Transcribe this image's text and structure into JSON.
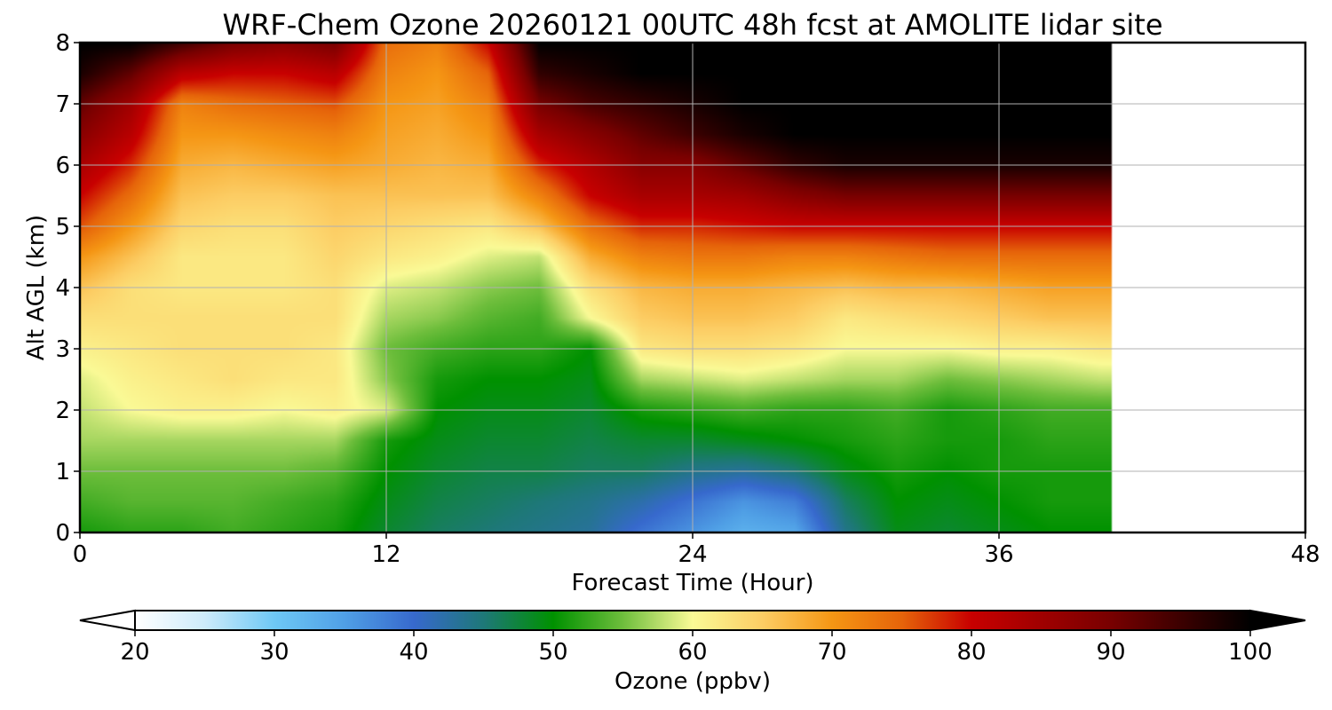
{
  "chart_data": {
    "type": "heatmap",
    "title": "WRF-Chem Ozone  20260121 00UTC 48h fcst at AMOLITE lidar site",
    "xlabel": "Forecast Time (Hour)",
    "ylabel": "Alt AGL (km)",
    "xlim": [
      0,
      48
    ],
    "ylim": [
      0,
      8
    ],
    "x_ticks": [
      "0",
      "12",
      "24",
      "36",
      "48"
    ],
    "y_ticks": [
      "0",
      "1",
      "2",
      "3",
      "4",
      "5",
      "6",
      "7",
      "8"
    ],
    "grid": true,
    "data_end_hour": 40.4,
    "colorbar": {
      "label": "Ozone  (ppbv)",
      "range": [
        20,
        100
      ],
      "ticks": [
        "20",
        "30",
        "40",
        "50",
        "60",
        "70",
        "80",
        "90",
        "100"
      ],
      "extend": "both",
      "orientation": "horizontal"
    },
    "hours": [
      0,
      2,
      4,
      6,
      8,
      10,
      12,
      14,
      16,
      18,
      20,
      22,
      24,
      26,
      28,
      30,
      32,
      34,
      36,
      38,
      40
    ],
    "altitudes_km": [
      0,
      0.5,
      1,
      1.5,
      2,
      2.5,
      3,
      3.5,
      4,
      4.5,
      5,
      5.5,
      6,
      6.5,
      7,
      7.5,
      8
    ],
    "ozone_ppbv": [
      [
        51,
        52,
        52,
        53,
        52,
        51,
        48,
        46,
        45,
        44,
        43,
        39,
        36,
        33,
        34,
        44,
        49,
        48,
        49,
        50,
        50
      ],
      [
        53,
        54,
        54,
        54,
        53,
        52,
        49,
        47,
        46,
        45,
        44,
        42,
        39,
        36,
        38,
        46,
        50,
        49,
        50,
        51,
        51
      ],
      [
        55,
        55,
        55,
        55,
        55,
        54,
        50,
        48,
        47,
        47,
        46,
        46,
        44,
        43,
        45,
        49,
        51,
        50,
        51,
        51,
        51
      ],
      [
        57,
        57,
        57,
        57,
        57,
        57,
        51,
        49,
        48,
        48,
        47,
        48,
        48,
        49,
        50,
        51,
        52,
        51,
        51,
        52,
        52
      ],
      [
        58,
        60,
        61,
        61,
        60,
        61,
        59,
        50,
        49,
        49,
        48,
        51,
        52,
        53,
        52,
        52,
        53,
        51,
        52,
        53,
        53
      ],
      [
        59,
        61,
        62,
        63,
        62,
        62,
        56,
        51,
        50,
        50,
        49,
        57,
        58,
        59,
        58,
        57,
        57,
        55,
        56,
        57,
        58
      ],
      [
        61,
        62,
        63,
        63,
        63,
        62,
        55,
        53,
        52,
        52,
        50,
        62,
        63,
        63,
        62,
        60,
        60,
        60,
        61,
        61,
        62
      ],
      [
        63,
        63,
        63,
        63,
        63,
        63,
        57,
        56,
        54,
        53,
        60,
        65,
        66,
        66,
        65,
        62,
        63,
        64,
        65,
        66,
        66
      ],
      [
        66,
        63,
        62,
        62,
        62,
        63,
        59,
        58,
        56,
        55,
        63,
        67,
        68,
        68,
        67,
        66,
        67,
        67,
        68,
        69,
        69
      ],
      [
        70,
        66,
        62,
        62,
        62,
        64,
        62,
        61,
        59,
        58,
        68,
        72,
        73,
        73,
        72,
        72,
        73,
        74,
        74,
        74,
        74
      ],
      [
        76,
        70,
        64,
        63,
        63,
        65,
        64,
        63,
        62,
        66,
        74,
        78,
        78,
        79,
        80,
        80,
        80,
        80,
        80,
        80,
        80
      ],
      [
        80,
        74,
        66,
        65,
        65,
        66,
        66,
        66,
        66,
        72,
        80,
        84,
        84,
        85,
        88,
        90,
        90,
        90,
        90,
        90,
        90
      ],
      [
        84,
        78,
        68,
        67,
        68,
        69,
        68,
        67,
        68,
        78,
        83,
        88,
        88,
        92,
        96,
        98,
        98,
        98,
        98,
        98,
        98
      ],
      [
        88,
        82,
        70,
        70,
        71,
        72,
        69,
        68,
        70,
        84,
        88,
        92,
        95,
        98,
        100,
        100,
        100,
        100,
        100,
        100,
        100
      ],
      [
        92,
        85,
        72,
        74,
        75,
        76,
        70,
        69,
        72,
        90,
        94,
        96,
        98,
        100,
        100,
        100,
        100,
        100,
        100,
        100,
        100
      ],
      [
        98,
        92,
        82,
        80,
        80,
        82,
        72,
        70,
        75,
        96,
        98,
        100,
        100,
        100,
        100,
        100,
        100,
        100,
        100,
        100,
        100
      ],
      [
        100,
        100,
        95,
        90,
        88,
        90,
        74,
        72,
        80,
        100,
        100,
        100,
        100,
        100,
        100,
        100,
        100,
        100,
        100,
        100,
        100
      ]
    ]
  }
}
